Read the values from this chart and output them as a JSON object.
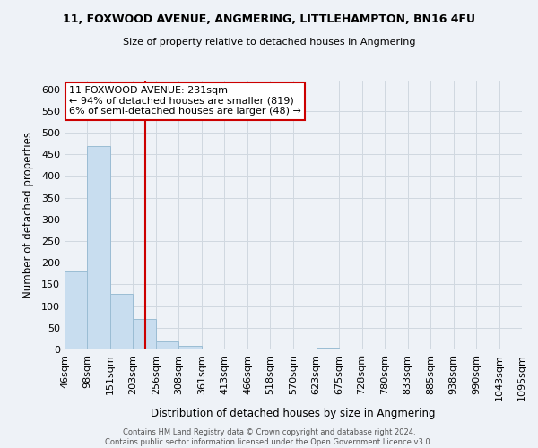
{
  "title_line1": "11, FOXWOOD AVENUE, ANGMERING, LITTLEHAMPTON, BN16 4FU",
  "title_line2": "Size of property relative to detached houses in Angmering",
  "xlabel": "Distribution of detached houses by size in Angmering",
  "ylabel": "Number of detached properties",
  "bin_edges": [
    46,
    98,
    151,
    203,
    256,
    308,
    361,
    413,
    466,
    518,
    570,
    623,
    675,
    728,
    780,
    833,
    885,
    938,
    990,
    1043,
    1095
  ],
  "bar_heights": [
    180,
    470,
    128,
    70,
    18,
    8,
    3,
    0,
    0,
    0,
    0,
    5,
    0,
    0,
    0,
    0,
    0,
    0,
    0,
    3
  ],
  "bar_color": "#c8ddef",
  "bar_edge_color": "#9bbdd4",
  "vline_x": 231,
  "vline_color": "#cc0000",
  "ylim": [
    0,
    620
  ],
  "annotation_title": "11 FOXWOOD AVENUE: 231sqm",
  "annotation_line1": "← 94% of detached houses are smaller (819)",
  "annotation_line2": "6% of semi-detached houses are larger (48) →",
  "annotation_box_color": "#ffffff",
  "annotation_box_edge": "#cc0000",
  "footer_line1": "Contains HM Land Registry data © Crown copyright and database right 2024.",
  "footer_line2": "Contains public sector information licensed under the Open Government Licence v3.0.",
  "tick_labels": [
    "46sqm",
    "98sqm",
    "151sqm",
    "203sqm",
    "256sqm",
    "308sqm",
    "361sqm",
    "413sqm",
    "466sqm",
    "518sqm",
    "570sqm",
    "623sqm",
    "675sqm",
    "728sqm",
    "780sqm",
    "833sqm",
    "885sqm",
    "938sqm",
    "990sqm",
    "1043sqm",
    "1095sqm"
  ],
  "yticks": [
    0,
    50,
    100,
    150,
    200,
    250,
    300,
    350,
    400,
    450,
    500,
    550,
    600
  ],
  "grid_color": "#d0d8e0",
  "background_color": "#eef2f7",
  "plot_bg_color": "#eef2f7"
}
